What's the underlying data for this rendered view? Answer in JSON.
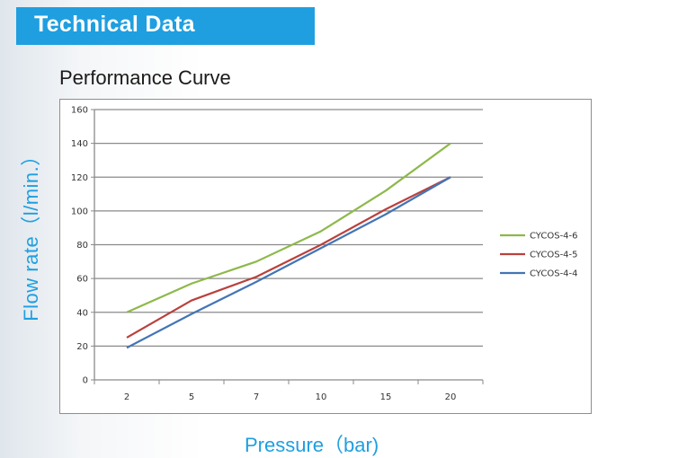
{
  "header": {
    "title": "Technical Data"
  },
  "chart_data": {
    "type": "line",
    "title": "Performance Curve",
    "xlabel": "Pressure（bar)",
    "ylabel": "Flow rate（l/min.）",
    "categories": [
      "2",
      "5",
      "7",
      "10",
      "15",
      "20"
    ],
    "ylim": [
      0,
      160
    ],
    "yticks": [
      0,
      20,
      40,
      60,
      80,
      100,
      120,
      140,
      160
    ],
    "grid": true,
    "legend_position": "right",
    "series": [
      {
        "name": "CYCOS-4-6",
        "color": "#8db94a",
        "values": [
          40,
          57,
          70,
          88,
          112,
          140
        ]
      },
      {
        "name": "CYCOS-4-5",
        "color": "#b9413d",
        "values": [
          25,
          47,
          61,
          80,
          101,
          120
        ]
      },
      {
        "name": "CYCOS-4-4",
        "color": "#4375b5",
        "values": [
          19,
          39,
          58,
          78,
          98,
          120
        ]
      }
    ]
  }
}
